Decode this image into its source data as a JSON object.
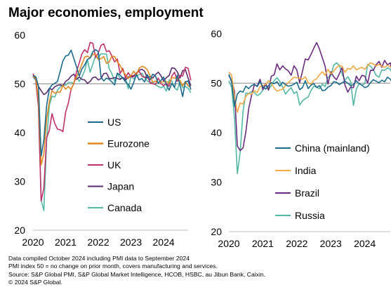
{
  "title": "Major economies, employment",
  "footnotes": [
    "Data compiled October 2024 including PMI data to September 2024",
    "PMI index 50 = no change on prior month, covers manufacturing and services.",
    "Source: S&P Global PMI, S&P Global Market Intelligence, HCOB, HSBC, au Jibun Bank, Caixin.",
    "© 2024 S&P Global."
  ],
  "chart_data": [
    {
      "type": "line",
      "title": "",
      "xlabel": "",
      "ylabel": "",
      "x_ticks": [
        "2020",
        "2021",
        "2022",
        "2023",
        "2024"
      ],
      "y_ticks": [
        20,
        30,
        40,
        50,
        60
      ],
      "ylim": [
        20,
        60
      ],
      "xlim": [
        2020.0,
        2024.75
      ],
      "x_step": 0.0833333,
      "x_start": 2020.0,
      "grid": false,
      "reference_line": 50,
      "legend_placement": "bottom-center",
      "series": [
        {
          "name": "US",
          "color": "#1a6a8c",
          "values": [
            51.7,
            51.5,
            49.5,
            35.2,
            38.5,
            45.5,
            49,
            49.8,
            50.1,
            50.5,
            52.6,
            54.7,
            55.7,
            55.9,
            56.9,
            55.2,
            53.5,
            51.6,
            53.1,
            53.9,
            55,
            55.3,
            56.6,
            57,
            56.6,
            51.4,
            50.6,
            51.2,
            50.9,
            50.4,
            49.8,
            52.2,
            51.8,
            51.2,
            50.4,
            49.9,
            48.9,
            50.3,
            51.9,
            50.8,
            51.1,
            50.4,
            51.9,
            50.8,
            52,
            51.6,
            50.1,
            50.7,
            51.4,
            49.8,
            48.7,
            50.1,
            49.3,
            51.8,
            49.8,
            47.4,
            50.4,
            50.6,
            48.8
          ]
        },
        {
          "name": "Eurozone",
          "color": "#e0871e",
          "values": [
            51.5,
            51.3,
            46.8,
            33.4,
            35.7,
            42.7,
            46.4,
            48.6,
            48.1,
            48.3,
            48.3,
            49.7,
            48.9,
            49.5,
            48.8,
            50.2,
            51.5,
            52.6,
            54.1,
            55.5,
            55.7,
            55.3,
            56.1,
            56,
            55,
            55.2,
            55.6,
            54.2,
            54.5,
            55.7,
            55.6,
            54.5,
            53.8,
            52.6,
            51.9,
            51.1,
            51.7,
            52.6,
            51.8,
            53.2,
            53.6,
            53.4,
            52.9,
            51.7,
            50.3,
            50.6,
            50.2,
            50.4,
            50.4,
            50.5,
            50.1,
            51.3,
            51.2,
            51.1,
            50.7,
            49.6,
            50.5,
            49.6,
            49.3
          ]
        },
        {
          "name": "UK",
          "color": "#c0306a",
          "values": [
            52.1,
            50.9,
            45.3,
            26,
            28.7,
            38.9,
            40.5,
            43.9,
            41.9,
            40.7,
            40.6,
            40.2,
            44.2,
            46.1,
            48.9,
            50.1,
            52.5,
            54.3,
            56.2,
            57,
            56.4,
            58.5,
            58.3,
            55.4,
            56.4,
            57.9,
            58.2,
            56.6,
            56.8,
            55.7,
            54.5,
            55.1,
            52.1,
            53.2,
            51.2,
            52.3,
            51.4,
            51.5,
            52.1,
            52.6,
            51.6,
            51.3,
            51.7,
            50.3,
            50,
            49.9,
            51.2,
            50.1,
            49.6,
            50.1,
            49.5,
            51.6,
            52.4,
            50.5,
            51.7,
            51.6,
            53.4,
            53.2,
            50.7
          ]
        },
        {
          "name": "Japan",
          "color": "#5a2a6e",
          "values": [
            51.6,
            51,
            49.5,
            48.6,
            47.8,
            48.2,
            49.1,
            48.8,
            49.4,
            49.7,
            49.8,
            49.6,
            50.5,
            50.9,
            51.6,
            52,
            50.9,
            51.4,
            50.9,
            50.8,
            50.1,
            50.5,
            51.3,
            51.4,
            50.8,
            51.1,
            52.1,
            52.2,
            51.1,
            51.1,
            51.3,
            51.1,
            50.9,
            51.3,
            50.8,
            51.4,
            51.6,
            51.7,
            52.2,
            52.8,
            53,
            52.6,
            51.2,
            51.5,
            51.2,
            51.9,
            52.4,
            51.7,
            50.6,
            51.3,
            51.7,
            53.3,
            53.2,
            52.5,
            51.2,
            52.7,
            52.9,
            51.2,
            49.6
          ]
        },
        {
          "name": "Canada",
          "color": "#52b8a5",
          "values": [
            51.5,
            50.7,
            45.4,
            26.2,
            24,
            38.2,
            45.6,
            47.5,
            47.3,
            48.7,
            49.4,
            49.8,
            49.7,
            50.3,
            50.3,
            50.1,
            51.6,
            50.5,
            51.5,
            52.7,
            55,
            52.4,
            54.1,
            55.8,
            55.4,
            56.2,
            56.1,
            56.1,
            53.1,
            52.1,
            50.5,
            52.2,
            51.1,
            51.3,
            51.2,
            49,
            51.6,
            51,
            51.7,
            51.9,
            52.2,
            51.3,
            50.6,
            50.2,
            50.4,
            49.8,
            49.5,
            49.2,
            49.5,
            48.5,
            50.8,
            50.6,
            49.2,
            48.7,
            50.5,
            49.2,
            49.5,
            49.1,
            48.2
          ]
        }
      ]
    },
    {
      "type": "line",
      "title": "",
      "xlabel": "",
      "ylabel": "",
      "x_ticks": [
        "2020",
        "2021",
        "2022",
        "2023",
        "2024"
      ],
      "y_ticks": [
        20,
        30,
        40,
        50,
        60
      ],
      "ylim": [
        20,
        60
      ],
      "xlim": [
        2020.0,
        2024.75
      ],
      "x_step": 0.0833333,
      "x_start": 2020.0,
      "grid": false,
      "reference_line": 50,
      "legend_placement": "bottom-center",
      "series": [
        {
          "name": "China (mainland)",
          "color": "#1a6a8c",
          "values": [
            51.8,
            50.2,
            45.3,
            47.8,
            48.4,
            48.2,
            49.4,
            48.9,
            49.5,
            49.8,
            49.3,
            50.3,
            49.3,
            48.8,
            49.5,
            50.1,
            49.9,
            50.3,
            49.4,
            50.2,
            49.7,
            49.4,
            49.5,
            49.8,
            50.2,
            48.7,
            49.1,
            50.5,
            48.9,
            49.6,
            49.9,
            49.1,
            49.5,
            48.5,
            48.6,
            49.2,
            49.5,
            50.3,
            50.2,
            49.7,
            50.1,
            50.4,
            50,
            49.5,
            49.7,
            50.5,
            49.9,
            49.6,
            49.1,
            49.3,
            50.1,
            50.7,
            50.4,
            50.1,
            50.6,
            50.3,
            51.2,
            50.8,
            49.9
          ]
        },
        {
          "name": "India",
          "color": "#f2a841",
          "values": [
            52.3,
            51.5,
            47.3,
            44.1,
            46,
            45.8,
            47.3,
            47.9,
            47.8,
            48.5,
            48.1,
            49.3,
            49.5,
            49.8,
            50.5,
            50,
            49,
            48.4,
            48.6,
            48.8,
            49.5,
            50.1,
            50.7,
            51.2,
            51.1,
            51,
            50.8,
            51.3,
            50.1,
            49.8,
            50.6,
            50.9,
            51.7,
            52.3,
            51.6,
            52.8,
            51.9,
            52.4,
            53.1,
            53.6,
            53.4,
            52.2,
            53,
            52.8,
            53.5,
            52.7,
            53,
            53.2,
            52.8,
            53.6,
            54.1,
            53.9,
            53.5,
            53.8,
            53.4,
            53.2,
            53.6,
            53.3,
            52.8
          ]
        },
        {
          "name": "Brazil",
          "color": "#6a2a80",
          "values": [
            51.5,
            50.6,
            48.3,
            37.3,
            36.4,
            36.9,
            40.1,
            44.8,
            47.5,
            49.7,
            49.4,
            50.8,
            48.7,
            49.9,
            48.6,
            51.4,
            51.7,
            53.9,
            52.7,
            53.5,
            52.9,
            52.5,
            51.6,
            53.5,
            52.7,
            50.1,
            52.4,
            54.9,
            54.7,
            55.8,
            57.1,
            58.2,
            56.9,
            55.1,
            53.4,
            49.8,
            52.3,
            51.3,
            50.7,
            51.9,
            53.2,
            49.6,
            48.2,
            49.2,
            49.1,
            51.4,
            50.5,
            51.6,
            51.4,
            50,
            52.6,
            52.6,
            53.7,
            54.4,
            53.2,
            54.6,
            53.7,
            54.1,
            51.2
          ]
        },
        {
          "name": "Russia",
          "color": "#52b8a5",
          "values": [
            50.5,
            49.1,
            42.9,
            31.7,
            36,
            44.3,
            48,
            47.9,
            48.3,
            48.1,
            47.5,
            47.8,
            48.6,
            49.6,
            48.7,
            49.5,
            50.5,
            51.1,
            50.4,
            49.2,
            47.8,
            48.5,
            49.1,
            47.9,
            48.3,
            45.6,
            46.4,
            46.9,
            47.2,
            48.5,
            49.4,
            49.2,
            48.9,
            49.8,
            49.3,
            51.2,
            51.5,
            53.6,
            54.1,
            53.6,
            51.8,
            50.6,
            51.3,
            50.3,
            45.5,
            48.8,
            49.9,
            49.6,
            49.9,
            53.8,
            53.4,
            52.7,
            51.6,
            51.2,
            52.7,
            52.6,
            53.1,
            52.8,
            51.5
          ]
        }
      ]
    }
  ]
}
